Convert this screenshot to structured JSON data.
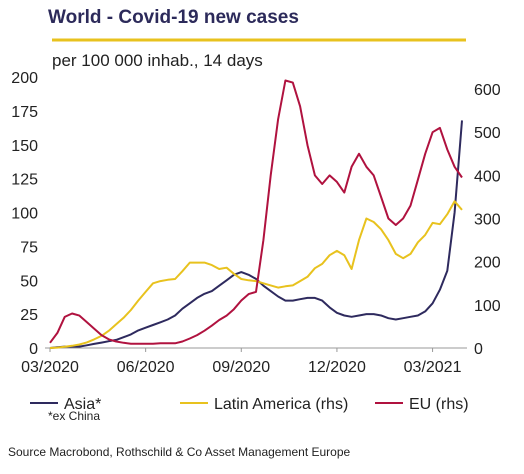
{
  "chart_data": {
    "type": "line",
    "title": "World - Covid-19 new cases",
    "subtitle": "per 100 000 inhab., 14 days",
    "categories": [
      "03/2020",
      null,
      null,
      null,
      null,
      null,
      null,
      null,
      null,
      null,
      null,
      null,
      null,
      "06/2020",
      null,
      null,
      null,
      null,
      null,
      null,
      null,
      null,
      null,
      null,
      null,
      null,
      "09/2020",
      null,
      null,
      null,
      null,
      null,
      null,
      null,
      null,
      null,
      null,
      null,
      null,
      "12/2020",
      null,
      null,
      null,
      null,
      null,
      null,
      null,
      null,
      null,
      null,
      null,
      null,
      "03/2021",
      null,
      null,
      null,
      null
    ],
    "series": [
      {
        "name": "Asia*",
        "color": "#2e2a5e",
        "values": [
          0,
          0.5,
          1,
          1,
          1,
          2,
          3,
          4,
          5,
          6,
          8,
          10,
          13,
          15,
          17,
          19,
          21,
          24,
          29,
          33,
          37,
          40,
          42,
          46,
          50,
          54,
          56,
          54,
          51,
          46,
          42,
          38,
          35,
          35,
          36,
          37,
          37,
          35,
          30,
          26,
          24,
          23,
          24,
          25,
          25,
          24,
          22,
          21,
          22,
          23,
          24,
          27,
          33,
          43,
          57,
          100,
          168
        ]
      },
      {
        "name": "Latin America (rhs)",
        "color": "#e8c21e",
        "axis": "y2",
        "values": [
          0,
          1,
          3,
          5,
          8,
          13,
          20,
          28,
          40,
          55,
          70,
          88,
          110,
          130,
          150,
          155,
          158,
          160,
          178,
          198,
          198,
          198,
          192,
          183,
          186,
          172,
          160,
          157,
          155,
          150,
          145,
          140,
          143,
          145,
          155,
          165,
          185,
          195,
          215,
          225,
          215,
          183,
          250,
          300,
          292,
          275,
          250,
          218,
          208,
          218,
          245,
          262,
          290,
          287,
          310,
          340,
          320
        ]
      },
      {
        "name": "EU (rhs)",
        "color": "#b0123f",
        "axis": "y2",
        "values": [
          12,
          35,
          72,
          80,
          75,
          60,
          45,
          30,
          20,
          15,
          12,
          10,
          10,
          10,
          10,
          11,
          11,
          11,
          15,
          22,
          30,
          40,
          52,
          65,
          75,
          90,
          110,
          125,
          130,
          250,
          400,
          530,
          620,
          615,
          560,
          470,
          400,
          380,
          400,
          385,
          360,
          420,
          450,
          420,
          400,
          350,
          300,
          285,
          300,
          330,
          390,
          450,
          500,
          510,
          460,
          420,
          395
        ]
      }
    ],
    "ylim": [
      0,
      200
    ],
    "yticks": [
      0,
      25,
      50,
      75,
      100,
      125,
      150,
      175,
      200
    ],
    "y2lim": [
      0,
      628
    ],
    "y2ticks": [
      0,
      100,
      200,
      300,
      400,
      500,
      600
    ],
    "legend": "bottom",
    "note": "*ex China",
    "source": "Source Macrobond, Rothschild & Co Asset Management Europe"
  }
}
